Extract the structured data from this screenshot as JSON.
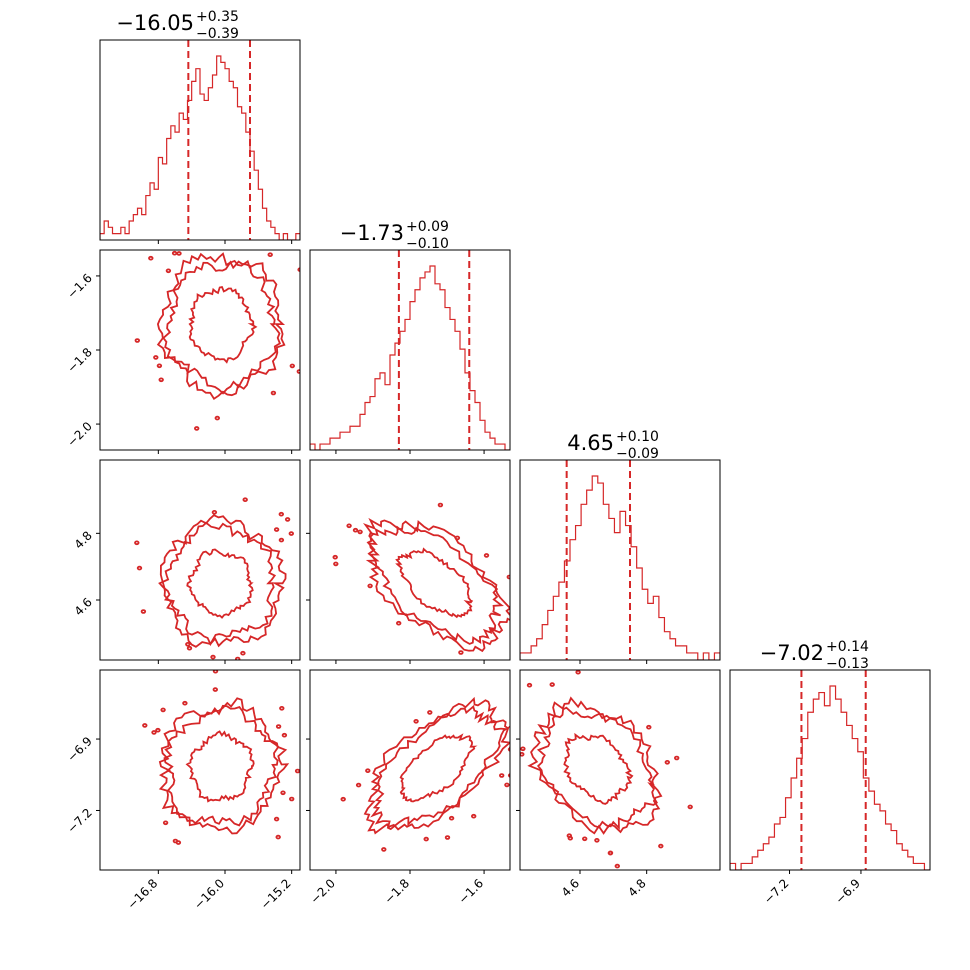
{
  "chart_data": {
    "type": "corner",
    "color": "#d62728",
    "parameters": [
      {
        "median": "−16.05",
        "plus": "+0.35",
        "minus": "−0.39",
        "median_value": -16.05,
        "err_plus": 0.35,
        "err_minus": 0.39,
        "range": [
          -17.5,
          -15.1
        ],
        "ticks": [
          -16.8,
          -16.0,
          -15.2
        ],
        "tick_labels": [
          "−16.8",
          "−16.0",
          "−15.2"
        ]
      },
      {
        "median": "−1.73",
        "plus": "+0.09",
        "minus": "−0.10",
        "median_value": -1.73,
        "err_plus": 0.09,
        "err_minus": 0.1,
        "range": [
          -2.07,
          -1.53
        ],
        "ticks": [
          -2.0,
          -1.8,
          -1.6
        ],
        "tick_labels": [
          "−2.0",
          "−1.8",
          "−1.6"
        ]
      },
      {
        "median": "4.65",
        "plus": "+0.10",
        "minus": "−0.09",
        "median_value": 4.65,
        "err_plus": 0.1,
        "err_minus": 0.09,
        "range": [
          4.42,
          5.02
        ],
        "ticks": [
          4.6,
          4.8
        ],
        "tick_labels": [
          "4.6",
          "4.8"
        ]
      },
      {
        "median": "−7.02",
        "plus": "+0.14",
        "minus": "−0.13",
        "median_value": -7.02,
        "err_plus": 0.14,
        "err_minus": 0.13,
        "range": [
          -7.45,
          -6.61
        ],
        "ticks": [
          -7.2,
          -6.9
        ],
        "tick_labels": [
          "−7.2",
          "−6.9"
        ]
      }
    ],
    "histograms": [
      [
        1,
        3,
        2,
        1,
        1,
        2,
        1,
        3,
        4,
        5,
        4,
        7,
        9,
        8,
        13,
        12,
        16,
        18,
        17,
        20,
        19,
        22,
        25,
        27,
        23,
        22,
        24,
        26,
        29,
        28,
        27,
        25,
        24,
        21,
        20,
        17,
        14,
        11,
        8,
        5,
        3,
        2,
        1,
        0,
        1,
        0,
        0,
        1
      ],
      [
        1,
        0,
        1,
        1,
        2,
        2,
        3,
        3,
        4,
        4,
        6,
        8,
        9,
        12,
        13,
        11,
        16,
        18,
        20,
        22,
        25,
        27,
        29,
        30,
        31,
        28,
        27,
        24,
        22,
        20,
        17,
        13,
        10,
        8,
        5,
        3,
        2,
        1,
        1,
        0
      ],
      [
        1,
        1,
        2,
        3,
        5,
        7,
        9,
        11,
        14,
        17,
        19,
        22,
        24,
        26,
        25,
        22,
        20,
        18,
        21,
        19,
        16,
        13,
        10,
        8,
        9,
        6,
        4,
        3,
        2,
        2,
        1,
        1,
        0,
        1,
        0,
        1
      ],
      [
        1,
        0,
        1,
        1,
        2,
        3,
        4,
        5,
        7,
        8,
        11,
        14,
        17,
        20,
        24,
        26,
        27,
        25,
        28,
        26,
        24,
        22,
        20,
        18,
        14,
        12,
        10,
        9,
        7,
        6,
        4,
        3,
        2,
        1,
        1,
        0
      ]
    ],
    "pairs": [
      {
        "row": 1,
        "col": 0,
        "rho": 0.0,
        "spread": 1.0
      },
      {
        "row": 2,
        "col": 0,
        "rho": 0.0,
        "spread": 1.0
      },
      {
        "row": 2,
        "col": 1,
        "rho": -0.55,
        "spread": 1.0
      },
      {
        "row": 3,
        "col": 0,
        "rho": 0.05,
        "spread": 1.0
      },
      {
        "row": 3,
        "col": 1,
        "rho": 0.6,
        "spread": 1.0
      },
      {
        "row": 3,
        "col": 2,
        "rho": -0.3,
        "spread": 1.0
      }
    ]
  }
}
